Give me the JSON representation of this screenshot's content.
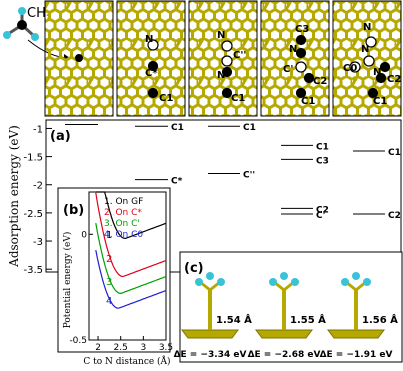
{
  "molecule": {
    "label": "CH",
    "sub": "3"
  },
  "panels": [
    {
      "labels": []
    },
    {
      "labels": [
        "N",
        "C*",
        "C1"
      ]
    },
    {
      "labels": [
        "N",
        "C''",
        "N",
        "C1"
      ]
    },
    {
      "labels": [
        "C3",
        "N",
        "C'",
        "C2",
        "C1"
      ]
    },
    {
      "labels": [
        "N",
        "N",
        "C0",
        "N",
        "C2",
        "C1"
      ]
    }
  ],
  "panel_a": {
    "label": "(a)",
    "ylabel": "Adsorption energy (eV)",
    "yticks": [
      "-1",
      "-1.5",
      "-2",
      "-2.5",
      "-3",
      "-3.5"
    ],
    "levels": [
      {
        "col": 1,
        "label": "C1",
        "energy": -0.96
      },
      {
        "col": 1,
        "label": "C*",
        "energy": -1.91
      },
      {
        "col": 2,
        "label": "C1",
        "energy": -0.96
      },
      {
        "col": 2,
        "label": "C''",
        "energy": -1.8
      },
      {
        "col": 3,
        "label": "C1",
        "energy": -1.3
      },
      {
        "col": 3,
        "label": "C3",
        "energy": -1.55
      },
      {
        "col": 3,
        "label": "C2",
        "energy": -2.42
      },
      {
        "col": 3,
        "label": "C'",
        "energy": -2.52
      },
      {
        "col": 4,
        "label": "C1",
        "energy": -1.4
      },
      {
        "col": 4,
        "label": "C2",
        "energy": -2.52
      },
      {
        "col": 4,
        "label": "C0",
        "energy": -3.4
      }
    ],
    "level0": -0.93
  },
  "panel_b": {
    "label": "(b)",
    "ylabel": "Potential energy (eV)",
    "xlabel": "C to N distance (Å)",
    "xticks": [
      "2",
      "2.5",
      "3",
      "3.5"
    ],
    "yticks": [
      "0",
      "-0.5"
    ],
    "legend": [
      {
        "num": "1.",
        "text": "On GF",
        "color": "#000000"
      },
      {
        "num": "2.",
        "text": "On C*",
        "color": "#e0001b"
      },
      {
        "num": "3.",
        "text": "On C'",
        "color": "#00a000"
      },
      {
        "num": "4.",
        "text": "On C0",
        "color": "#1f1fd0"
      }
    ],
    "curve_numbers": [
      "1",
      "2",
      "3",
      "4"
    ]
  },
  "panel_c": {
    "label": "(c)",
    "bonds": [
      "1.54 Å",
      "1.55 Å",
      "1.56 Å"
    ],
    "energies": [
      "ΔE = −3.34 eV",
      "ΔE = −2.68 eV",
      "ΔE = −1.91 eV"
    ]
  },
  "colors": {
    "lattice": "#b5a800",
    "latticeDark": "#7d7400",
    "cyan": "#3ac3d8",
    "atom": "#000000"
  }
}
